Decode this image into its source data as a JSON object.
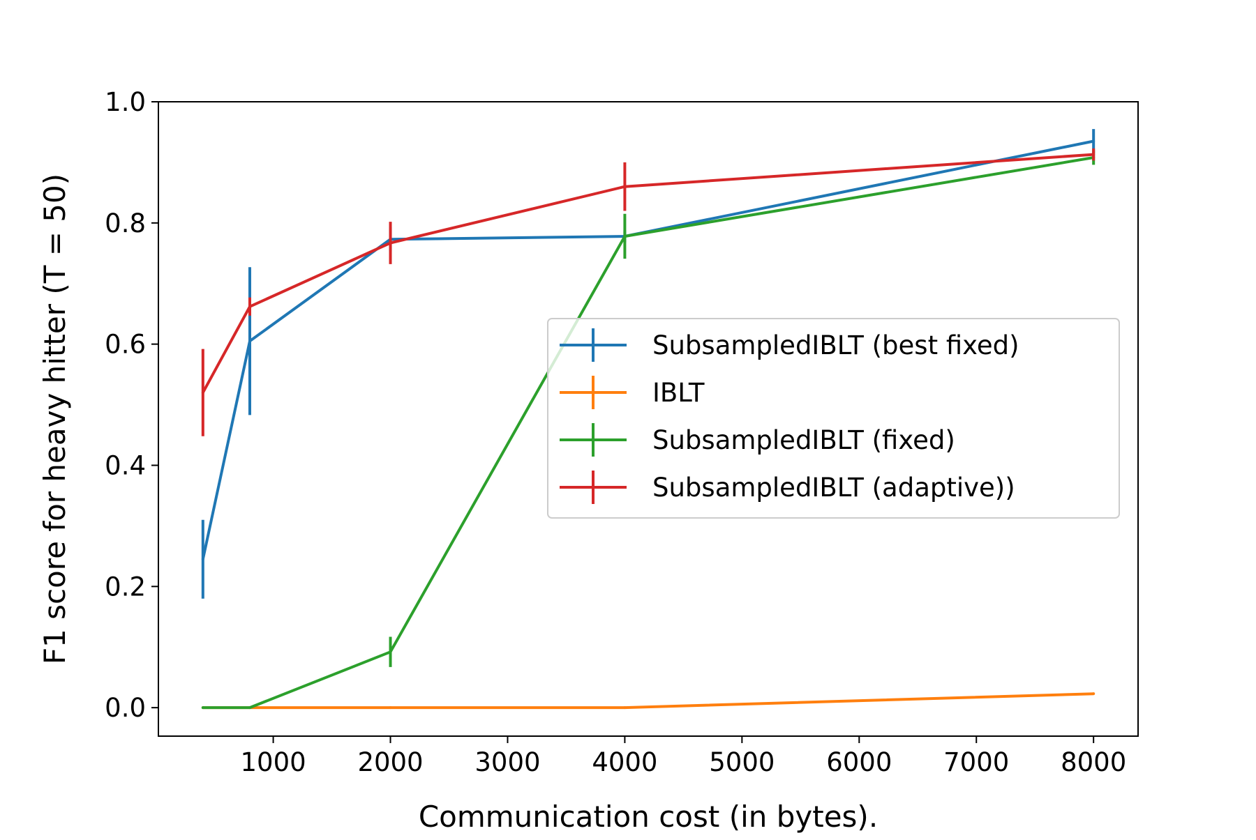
{
  "chart_data": {
    "type": "line",
    "title": "",
    "xlabel": "Communication cost (in bytes).",
    "ylabel": "F1 score for heavy hitter (T = 50)",
    "xlim": [
      20,
      8380
    ],
    "ylim": [
      -0.047,
      1.0
    ],
    "xticks": [
      1000,
      2000,
      3000,
      4000,
      5000,
      6000,
      7000,
      8000
    ],
    "xtick_labels": [
      "1000",
      "2000",
      "3000",
      "4000",
      "5000",
      "6000",
      "7000",
      "8000"
    ],
    "yticks": [
      0.0,
      0.2,
      0.4,
      0.6,
      0.8,
      1.0
    ],
    "ytick_labels": [
      "0.0",
      "0.2",
      "0.4",
      "0.6",
      "0.8",
      "1.0"
    ],
    "grid": false,
    "legend_position": "center-right",
    "series": [
      {
        "name": "SubsampledIBLT (best fixed)",
        "color": "#1f77b4",
        "x": [
          400,
          800,
          2000,
          4000,
          8000
        ],
        "y": [
          0.245,
          0.605,
          0.773,
          0.778,
          0.935
        ],
        "yerr": [
          0.065,
          0.122,
          0.02,
          0.01,
          0.02
        ]
      },
      {
        "name": "IBLT",
        "color": "#ff7f0e",
        "x": [
          400,
          800,
          2000,
          4000,
          8000
        ],
        "y": [
          0.0,
          0.0,
          0.0,
          0.0,
          0.023
        ],
        "yerr": [
          0.0,
          0.0,
          0.0,
          0.0,
          0.0
        ]
      },
      {
        "name": "SubsampledIBLT (fixed)",
        "color": "#2ca02c",
        "x": [
          400,
          800,
          2000,
          4000,
          8000
        ],
        "y": [
          0.0,
          0.0,
          0.092,
          0.778,
          0.908
        ],
        "yerr": [
          0.0,
          0.0,
          0.025,
          0.037,
          0.012
        ]
      },
      {
        "name": "SubsampledIBLT (adaptive))",
        "color": "#d62728",
        "x": [
          400,
          800,
          2000,
          4000,
          8000
        ],
        "y": [
          0.52,
          0.662,
          0.767,
          0.86,
          0.913
        ],
        "yerr": [
          0.072,
          0.015,
          0.035,
          0.04,
          0.01
        ]
      }
    ]
  }
}
